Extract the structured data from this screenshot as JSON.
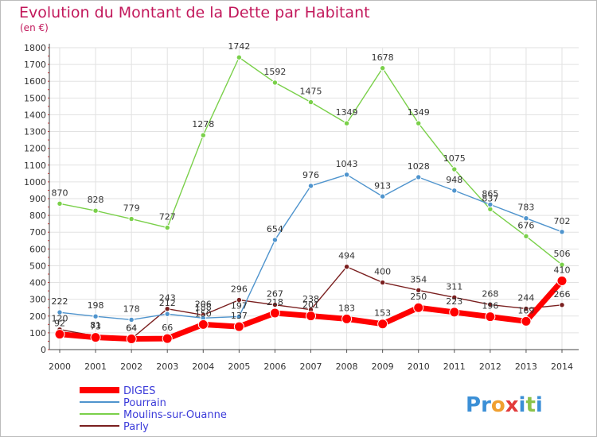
{
  "chart_data": {
    "type": "line",
    "title": "Evolution du Montant de la Dette par Habitant",
    "subtitle": "(en €)",
    "x": [
      2000,
      2001,
      2002,
      2003,
      2004,
      2005,
      2006,
      2007,
      2008,
      2009,
      2010,
      2011,
      2012,
      2013,
      2014
    ],
    "ylim": [
      0,
      1800
    ],
    "yticks": [
      0,
      100,
      200,
      300,
      400,
      500,
      600,
      700,
      800,
      900,
      1000,
      1100,
      1200,
      1300,
      1400,
      1500,
      1600,
      1700,
      1800
    ],
    "grid": true,
    "legend_position": "bottom-left",
    "series": [
      {
        "name": "DIGES",
        "color": "#ff0000",
        "values": [
          92,
          73,
          64,
          66,
          150,
          137,
          218,
          201,
          183,
          153,
          250,
          223,
          196,
          169,
          410
        ]
      },
      {
        "name": "Pourrain",
        "color": "#4f94cd",
        "values": [
          222,
          198,
          178,
          212,
          188,
          197,
          654,
          976,
          1043,
          913,
          1028,
          948,
          865,
          783,
          702
        ]
      },
      {
        "name": "Moulins-sur-Ouanne",
        "color": "#7ad04a",
        "values": [
          870,
          828,
          779,
          727,
          1278,
          1742,
          1592,
          1475,
          1349,
          1678,
          1349,
          1075,
          837,
          676,
          506
        ]
      },
      {
        "name": "Parly",
        "color": "#7a1f1f",
        "values": [
          120,
          81,
          64,
          243,
          206,
          296,
          267,
          238,
          494,
          400,
          354,
          311,
          268,
          244,
          266
        ]
      }
    ]
  },
  "logo": {
    "letters": [
      "P",
      "r",
      "o",
      "x",
      "i",
      "t",
      "i"
    ],
    "colors": [
      "#3b8fd6",
      "#3b8fd6",
      "#f0a030",
      "#e23b3b",
      "#3b8fd6",
      "#8bc34a",
      "#3b8fd6"
    ]
  }
}
